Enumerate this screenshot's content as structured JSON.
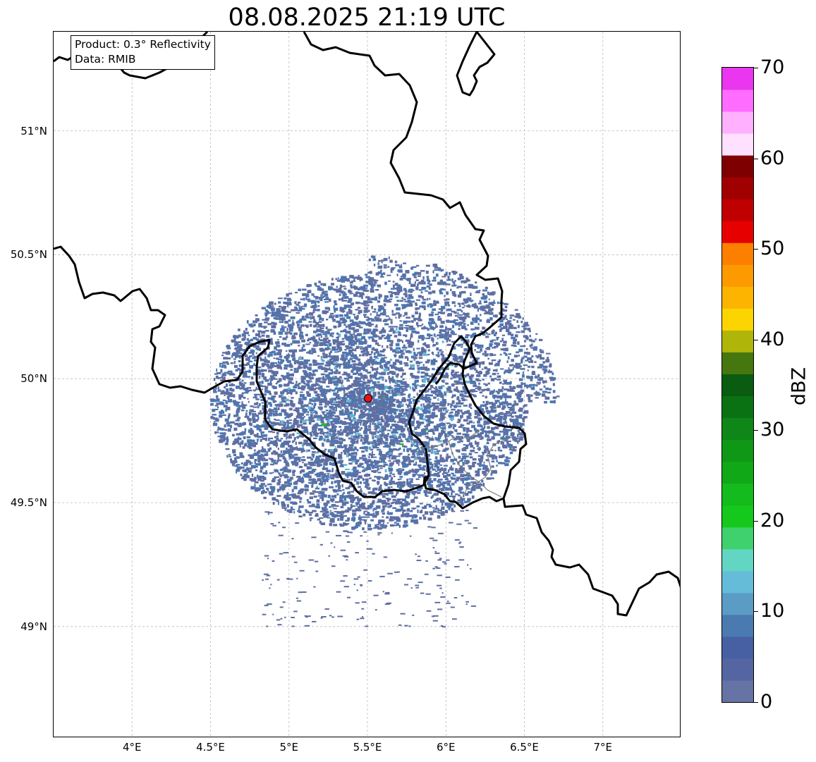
{
  "title": "08.08.2025 21:19 UTC",
  "info_box": {
    "product": "Product: 0.3° Reflectivity",
    "data_source": "Data: RMIB"
  },
  "map": {
    "projection": "lon/lat",
    "lon_range": [
      3.5,
      7.5
    ],
    "lat_range": [
      48.55,
      51.4
    ],
    "gridlines": true,
    "radar_site": {
      "name": "radar site",
      "lon": 5.5,
      "lat": 49.91,
      "marker_color": "#ee1111"
    },
    "lat_ticks": [
      {
        "value": 51.0,
        "label": "51°N"
      },
      {
        "value": 50.5,
        "label": "50.5°N"
      },
      {
        "value": 50.0,
        "label": "50°N"
      },
      {
        "value": 49.5,
        "label": "49.5°N"
      },
      {
        "value": 49.0,
        "label": "49°N"
      }
    ],
    "lon_ticks": [
      {
        "value": 4.0,
        "label": "4°E"
      },
      {
        "value": 4.5,
        "label": "4.5°E"
      },
      {
        "value": 5.0,
        "label": "5°E"
      },
      {
        "value": 5.5,
        "label": "5.5°E"
      },
      {
        "value": 6.0,
        "label": "6°E"
      },
      {
        "value": 6.5,
        "label": "6.5°E"
      },
      {
        "value": 7.0,
        "label": "7°E"
      }
    ]
  },
  "colorbar": {
    "label": "dBZ",
    "min": 0,
    "max": 70,
    "step": 2.5,
    "ticks": [
      {
        "value": 0,
        "label": "0"
      },
      {
        "value": 10,
        "label": "10"
      },
      {
        "value": 20,
        "label": "20"
      },
      {
        "value": 30,
        "label": "30"
      },
      {
        "value": 40,
        "label": "40"
      },
      {
        "value": 50,
        "label": "50"
      },
      {
        "value": 60,
        "label": "60"
      },
      {
        "value": 70,
        "label": "70"
      }
    ],
    "colors": [
      "#6673a5",
      "#5565a1",
      "#4760a3",
      "#4a7aaf",
      "#5b9cc4",
      "#64bcd9",
      "#62d6c2",
      "#3ed16d",
      "#14c81c",
      "#14bb1c",
      "#10a816",
      "#0f9816",
      "#0e8718",
      "#0b7213",
      "#0a5c10",
      "#46770e",
      "#b0b50a",
      "#fcd500",
      "#fcb400",
      "#fc9a00",
      "#fc7f00",
      "#e70000",
      "#c00000",
      "#a00000",
      "#7f0000",
      "#ffe0ff",
      "#ffb0ff",
      "#ff6cff",
      "#ea36ee"
    ]
  },
  "echo_colors": {
    "weak": "#5e6fa3",
    "moderate": "#4a78b3",
    "light": "#62b8d6",
    "strong": "#14c81c"
  }
}
